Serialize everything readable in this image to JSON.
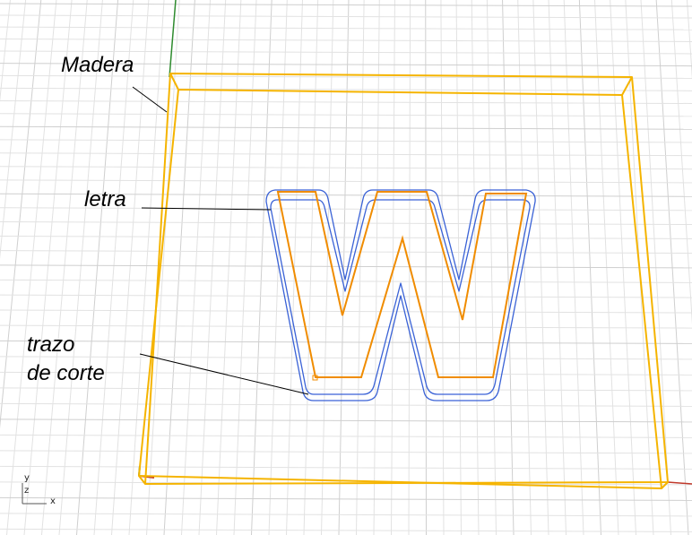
{
  "viewport": {
    "annotations": {
      "madera": "Madera",
      "letra": "letra",
      "trazo": "trazo\nde corte"
    },
    "axis_icon": {
      "y_label": "y",
      "z_label": "z",
      "x_label": "x"
    },
    "colors": {
      "background": "#ffffff",
      "grid": "#e2e2e2",
      "grid_major": "#cfcfcf",
      "wood_outline": "#f5b400",
      "letter_outline": "#f08c00",
      "cut_path": "#3a62d6",
      "y_axis": "#2e8b2e",
      "x_axis": "#c0392b",
      "leader_line": "#000000"
    }
  }
}
